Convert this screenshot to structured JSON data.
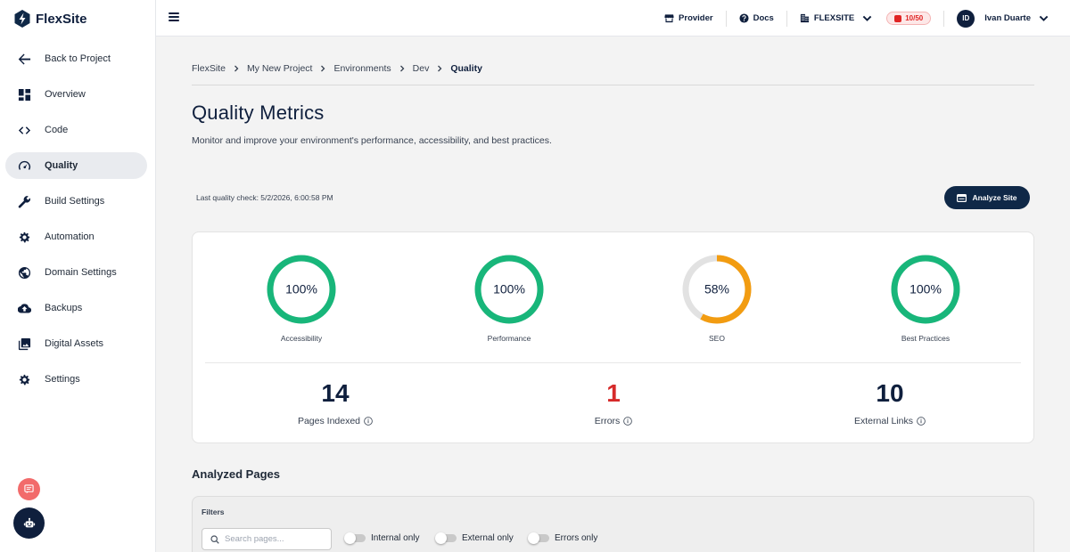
{
  "app": {
    "name": "FlexSite"
  },
  "sidebar": {
    "items": [
      {
        "label": "Back to Project",
        "icon": "arrow-left-icon",
        "active": false
      },
      {
        "label": "Overview",
        "icon": "dashboard-icon",
        "active": false
      },
      {
        "label": "Code",
        "icon": "code-icon",
        "active": false
      },
      {
        "label": "Quality",
        "icon": "speedometer-icon",
        "active": true
      },
      {
        "label": "Build Settings",
        "icon": "wrench-icon",
        "active": false
      },
      {
        "label": "Automation",
        "icon": "gear-icon",
        "active": false
      },
      {
        "label": "Domain Settings",
        "icon": "globe-icon",
        "active": false
      },
      {
        "label": "Backups",
        "icon": "cloud-upload-icon",
        "active": false
      },
      {
        "label": "Digital Assets",
        "icon": "image-library-icon",
        "active": false
      },
      {
        "label": "Settings",
        "icon": "gear-icon",
        "active": false
      }
    ]
  },
  "topbar": {
    "provider_label": "Provider",
    "docs_label": "Docs",
    "org_label": "FLEXSITE",
    "credits": "10/50",
    "user_initials": "ID",
    "user_name": "Ivan Duarte"
  },
  "breadcrumb": [
    "FlexSite",
    "My New Project",
    "Environments",
    "Dev",
    "Quality"
  ],
  "page": {
    "title": "Quality Metrics",
    "subtitle": "Monitor and improve your environment's performance, accessibility, and best practices.",
    "last_check": "Last quality check: 5/2/2026, 6:00:58 PM",
    "analyze_button": "Analyze Site"
  },
  "scores": [
    {
      "label": "Accessibility",
      "value": 100,
      "display": "100%",
      "color": "#18b67a"
    },
    {
      "label": "Performance",
      "value": 100,
      "display": "100%",
      "color": "#18b67a"
    },
    {
      "label": "SEO",
      "value": 58,
      "display": "58%",
      "color": "#f29c11"
    },
    {
      "label": "Best Practices",
      "value": 100,
      "display": "100%",
      "color": "#18b67a"
    }
  ],
  "stats": [
    {
      "value": "14",
      "label": "Pages Indexed"
    },
    {
      "value": "1",
      "label": "Errors"
    },
    {
      "value": "10",
      "label": "External Links"
    }
  ],
  "analyzed_pages": {
    "title": "Analyzed Pages",
    "filters_title": "Filters",
    "search_placeholder": "Search pages...",
    "toggles": [
      "Internal only",
      "External only",
      "Errors only"
    ]
  },
  "colors": {
    "brand_dark": "#0f1f3d",
    "success": "#18b67a",
    "warning": "#f29c11",
    "error": "#d62a2a",
    "track": "#e2e2e2"
  }
}
